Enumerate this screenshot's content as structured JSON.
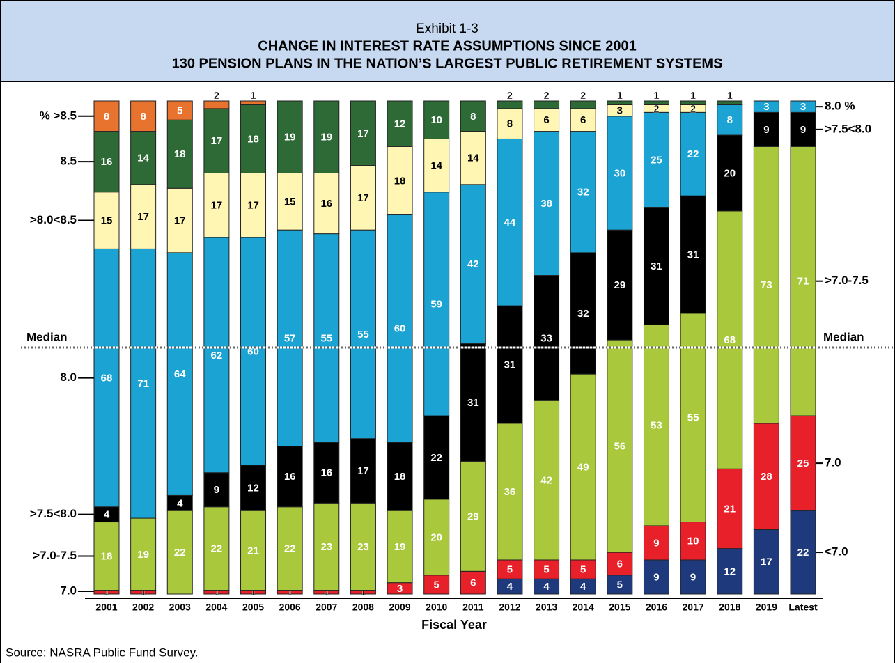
{
  "chart_data": {
    "type": "stacked_bar",
    "exhibit": "Exhibit 1-3",
    "title": "CHANGE IN INTEREST RATE ASSUMPTIONS SINCE 2001",
    "subtitle": "130 PENSION PLANS IN THE NATION’S LARGEST PUBLIC RETIREMENT SYSTEMS",
    "x_label": "Fiscal Year",
    "source": "Source: NASRA Public Fund Survey.",
    "median": 65,
    "median_label": "Median",
    "ylim": [
      0,
      130
    ],
    "categories": [
      "2001",
      "2002",
      "2003",
      "2004",
      "2005",
      "2006",
      "2007",
      "2008",
      "2009",
      "2010",
      "2011",
      "2012",
      "2013",
      "2014",
      "2015",
      "2016",
      "2017",
      "2018",
      "2019",
      "Latest"
    ],
    "series": [
      {
        "right_label": "<7.0",
        "color": "#1f3a7c",
        "values": [
          0,
          0,
          0,
          0,
          0,
          0,
          0,
          0,
          0,
          0,
          0,
          4,
          4,
          4,
          5,
          9,
          9,
          12,
          17,
          22
        ]
      },
      {
        "left_label": "7.0",
        "right_label": "7.0",
        "color": "#e8202a",
        "values": [
          1,
          1,
          0,
          1,
          1,
          1,
          1,
          1,
          3,
          5,
          6,
          5,
          5,
          5,
          6,
          9,
          10,
          21,
          28,
          25
        ]
      },
      {
        "left_label": ">7.0-7.5",
        "right_label": ">7.0-7.5",
        "color": "#a9c83b",
        "values": [
          18,
          19,
          22,
          22,
          21,
          22,
          23,
          23,
          19,
          20,
          29,
          36,
          42,
          49,
          56,
          53,
          55,
          68,
          73,
          71
        ]
      },
      {
        "left_label": ">7.5<8.0",
        "right_label": ">7.5<8.0",
        "color": "#000000",
        "values": [
          4,
          0,
          4,
          9,
          12,
          16,
          16,
          17,
          18,
          22,
          31,
          31,
          33,
          32,
          29,
          31,
          31,
          20,
          9,
          9
        ]
      },
      {
        "left_label": "8.0",
        "right_label": "8.0 %",
        "color": "#1ba3d3",
        "values": [
          68,
          71,
          64,
          62,
          60,
          57,
          55,
          55,
          60,
          59,
          42,
          44,
          38,
          32,
          30,
          25,
          22,
          8,
          3,
          3
        ]
      },
      {
        "left_label": ">8.0<8.5",
        "color": "#fff6b3",
        "values": [
          15,
          17,
          17,
          17,
          17,
          15,
          16,
          17,
          18,
          14,
          14,
          8,
          6,
          6,
          3,
          2,
          2,
          0,
          0,
          0
        ]
      },
      {
        "left_label": "8.5",
        "color": "#2d6a35",
        "values": [
          16,
          14,
          18,
          17,
          18,
          19,
          19,
          17,
          12,
          10,
          8,
          2,
          2,
          2,
          1,
          1,
          1,
          1,
          0,
          0
        ]
      },
      {
        "left_label": "% >8.5",
        "color": "#e8732f",
        "values": [
          8,
          8,
          5,
          2,
          1,
          0,
          0,
          0,
          0,
          0,
          0,
          0,
          0,
          0,
          0,
          0,
          0,
          0,
          0,
          0
        ]
      }
    ]
  }
}
